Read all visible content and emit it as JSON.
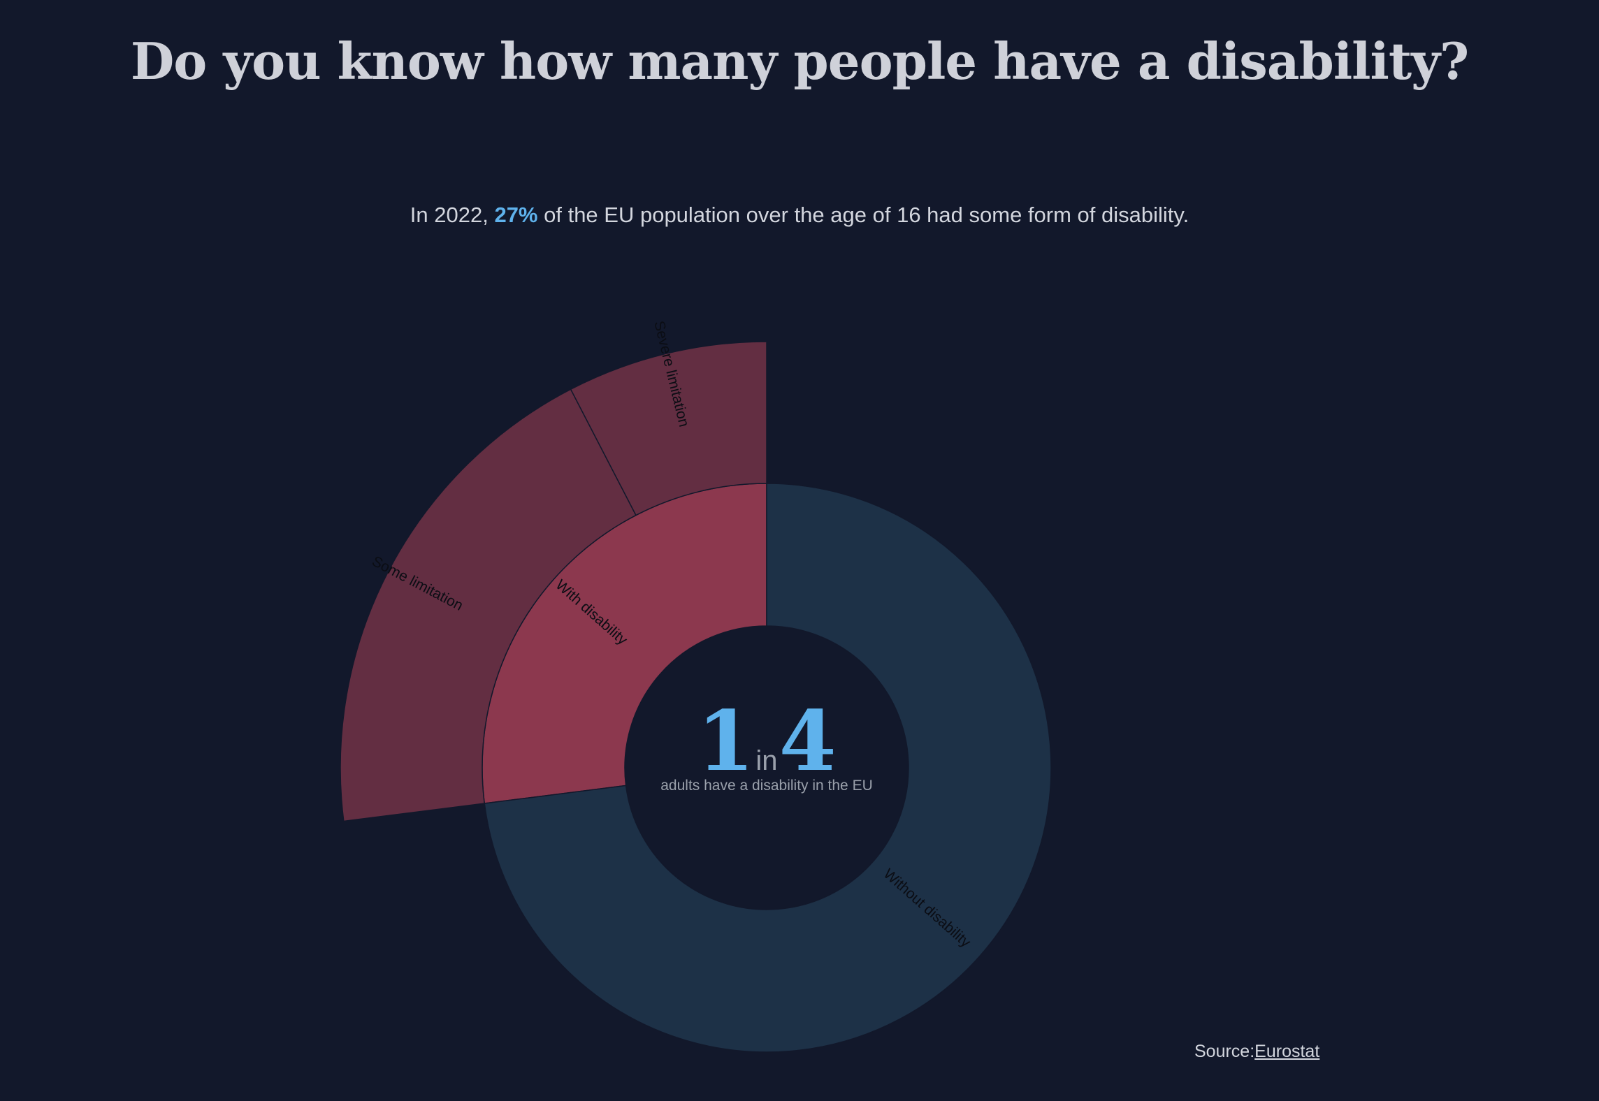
{
  "title": "Do you know how many people have a disability?",
  "subtitle": {
    "before": "In 2022, ",
    "highlight": "27%",
    "after": " of the EU population over the age of 16 had some form of disability."
  },
  "center": {
    "big_left": "1",
    "small": "in",
    "big_right": "4",
    "caption": "adults have a disability in the EU"
  },
  "source": {
    "label": "Source:",
    "link_text": "Eurostat"
  },
  "colors": {
    "background": "#12182b",
    "with_disability": "#8c384e",
    "without_disability": "#1d3147",
    "outer_limitation": "#632e42",
    "accent": "#5fb2ec"
  },
  "chart_data": {
    "type": "sunburst",
    "title": "",
    "inner_ring": [
      {
        "label": "With disability",
        "value": 27,
        "color": "#8c384e"
      },
      {
        "label": "Without disability",
        "value": 73,
        "color": "#1d3147"
      }
    ],
    "outer_ring": [
      {
        "label": "Some limitation",
        "value": 19.4,
        "parent": "With disability",
        "color": "#632e42"
      },
      {
        "label": "Severe limitation",
        "value": 7.6,
        "parent": "With disability",
        "color": "#632e42"
      }
    ]
  }
}
